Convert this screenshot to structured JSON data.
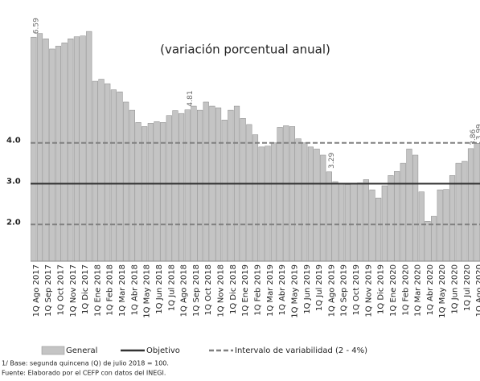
{
  "chart_data": {
    "type": "bar",
    "subtitle": "(variación porcentual anual)",
    "categories": [
      "1Q Ago 2017",
      null,
      "1Q Sep 2017",
      null,
      "1Q Oct 2017",
      null,
      "1Q Nov 2017",
      null,
      "1Q Dic 2017",
      null,
      "1Q Ene 2018",
      null,
      "1Q Feb 2018",
      null,
      "1Q Mar 2018",
      null,
      "1Q Abr 2018",
      null,
      "1Q May 2018",
      null,
      "1Q Jun 2018",
      null,
      "1Q Jul 2018",
      null,
      "1Q Ago 2018",
      null,
      "1Q Sep 2018",
      null,
      "1Q Oct 2018",
      null,
      "1Q Nov 2018",
      null,
      "1Q Dic 2018",
      null,
      "1Q Ene 2019",
      null,
      "1Q Feb 2019",
      null,
      "1Q Mar 2019",
      null,
      "1Q Abr 2019",
      null,
      "1Q May 2019",
      null,
      "1Q Jun 2019",
      null,
      "1Q Jul 2019",
      null,
      "1Q Ago 2019",
      null,
      "1Q Sep 2019",
      null,
      "1Q Oct 2019",
      null,
      "1Q Nov 2019",
      null,
      "1Q Dic 2019",
      null,
      "1Q Ene 2020",
      null,
      "1Q Feb 2020",
      null,
      "1Q Mar 2020",
      null,
      "1Q Abr 2020",
      null,
      "1Q May 2020",
      null,
      "1Q Jun 2020",
      null,
      "1Q Jul 2020",
      null,
      "1Q Ago 2020"
    ],
    "series": [
      {
        "name": "General",
        "color": "#c4c4c4",
        "values": [
          6.59,
          6.68,
          6.55,
          6.3,
          6.37,
          6.45,
          6.55,
          6.6,
          6.62,
          6.73,
          5.51,
          5.56,
          5.45,
          5.3,
          5.25,
          5.0,
          4.8,
          4.5,
          4.4,
          4.48,
          4.52,
          4.5,
          4.67,
          4.79,
          4.72,
          4.81,
          4.9,
          4.8,
          5.0,
          4.9,
          4.86,
          4.56,
          4.8,
          4.9,
          4.6,
          4.45,
          4.2,
          3.9,
          3.92,
          4.0,
          4.38,
          4.42,
          4.4,
          4.1,
          4.0,
          3.9,
          3.85,
          3.7,
          3.29,
          3.05,
          3.0,
          2.98,
          3.0,
          3.02,
          3.1,
          2.85,
          2.65,
          2.95,
          3.2,
          3.3,
          3.5,
          3.85,
          3.7,
          2.8,
          2.08,
          2.2,
          2.85,
          2.86,
          3.2,
          3.5,
          3.55,
          3.86,
          3.99
        ],
        "value_labels": [
          "6.59",
          null,
          null,
          null,
          null,
          null,
          null,
          null,
          null,
          null,
          null,
          null,
          null,
          null,
          null,
          null,
          null,
          null,
          null,
          null,
          null,
          null,
          null,
          null,
          null,
          "4.81",
          null,
          null,
          null,
          null,
          null,
          null,
          null,
          null,
          null,
          null,
          null,
          null,
          null,
          null,
          null,
          null,
          null,
          null,
          null,
          null,
          null,
          null,
          "3.29",
          null,
          null,
          null,
          null,
          null,
          null,
          null,
          null,
          null,
          null,
          null,
          null,
          null,
          null,
          null,
          null,
          null,
          null,
          null,
          null,
          null,
          null,
          "3.86",
          "3.99"
        ]
      }
    ],
    "reference_lines": [
      {
        "name": "Objetivo",
        "color": "#333333",
        "values": [
          3
        ]
      },
      {
        "name": "Intervalo de variabilidad (2 - 4%)",
        "color": "#808080",
        "values": [
          2,
          4
        ]
      }
    ],
    "ylim": [
      1.1,
      7.5
    ],
    "yticks": [
      {
        "value": 2,
        "label": "2.0"
      },
      {
        "value": 3,
        "label": "3.0"
      },
      {
        "value": 4,
        "label": "4.0"
      }
    ],
    "grid": false,
    "footnotes": [
      "1/ Base: segunda quincena (Q) de julio 2018 = 100.",
      "Fuente: Elaborado por el CEFP con  datos del INEGI."
    ]
  }
}
